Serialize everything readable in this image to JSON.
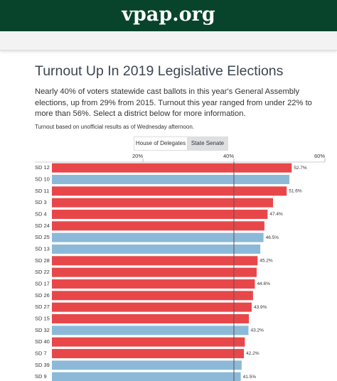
{
  "header": {
    "site": "vpap.org"
  },
  "article": {
    "title": "Turnout Up In 2019 Legislative Elections",
    "intro": "Nearly 40% of voters statewide cast ballots in this year's General Assembly elections, up from 29% from 2015. Turnout this year ranged from under 22% to more than 56%. Select a district below for more information.",
    "note": "Turnout based on unofficial results as of Wednesday afternoon.",
    "tabs": [
      "House of Delegates",
      "State Senate"
    ]
  },
  "chart_data": {
    "type": "hbar",
    "categories": [
      "SD 12",
      "SD 10",
      "SD 11",
      "SD 3",
      "SD 4",
      "SD 24",
      "SD 25",
      "SD 13",
      "SD 28",
      "SD 22",
      "SD 17",
      "SD 26",
      "SD 27",
      "SD 15",
      "SD 32",
      "SD 40",
      "SD 7",
      "SD 39",
      "SD 9"
    ],
    "values": [
      52.7,
      52.2,
      51.6,
      48.6,
      47.4,
      46.7,
      46.5,
      45.8,
      45.2,
      45.0,
      44.6,
      44.2,
      43.9,
      43.3,
      43.2,
      42.4,
      42.2,
      41.7,
      41.5
    ],
    "value_labels": [
      "52.7%",
      null,
      "51.6%",
      null,
      "47.4%",
      null,
      "46.5%",
      null,
      "45.2%",
      null,
      "44.6%",
      null,
      "43.9%",
      null,
      "43.2%",
      null,
      "42.2%",
      null,
      "41.5%"
    ],
    "colors": [
      "#e8474a",
      "#8db9d9",
      "#e8474a",
      "#e8474a",
      "#e8474a",
      "#e8474a",
      "#8db9d9",
      "#8db9d9",
      "#e8474a",
      "#e8474a",
      "#e8474a",
      "#e8474a",
      "#e8474a",
      "#e8474a",
      "#8db9d9",
      "#e8474a",
      "#e8474a",
      "#8db9d9",
      "#8db9d9"
    ],
    "xlim": [
      0,
      60
    ],
    "xticks": [
      {
        "value": 20,
        "label": "20%"
      },
      {
        "value": 40,
        "label": "40%"
      },
      {
        "value": 60,
        "label": "60%"
      }
    ],
    "reference_line": 40
  }
}
